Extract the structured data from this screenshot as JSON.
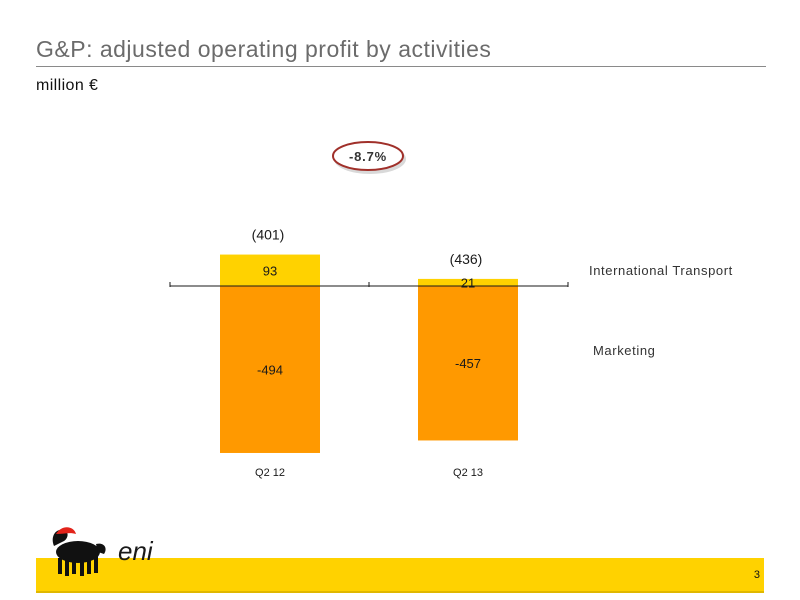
{
  "slide": {
    "title": "G&P: adjusted operating profit by activities",
    "subtitle": "million €",
    "page_number": "3",
    "logo_text": "eni"
  },
  "colors": {
    "international_transport": "#ffd200",
    "marketing": "#ff9900",
    "badge_border": "#a0302a",
    "footer": "#ffd200"
  },
  "chart_data": {
    "type": "bar",
    "stacked": true,
    "categories": [
      "Q2 12",
      "Q2 13"
    ],
    "series": [
      {
        "name": "International Transport",
        "values": [
          93,
          21
        ]
      },
      {
        "name": "Marketing",
        "values": [
          -494,
          -457
        ]
      }
    ],
    "totals": [
      "(401)",
      "(436)"
    ],
    "data_labels": [
      [
        "93",
        "21"
      ],
      [
        "-494",
        "-457"
      ]
    ],
    "annotation": "-8.7%",
    "ylim": [
      -520,
      100
    ],
    "grid": false,
    "legend": "right"
  }
}
